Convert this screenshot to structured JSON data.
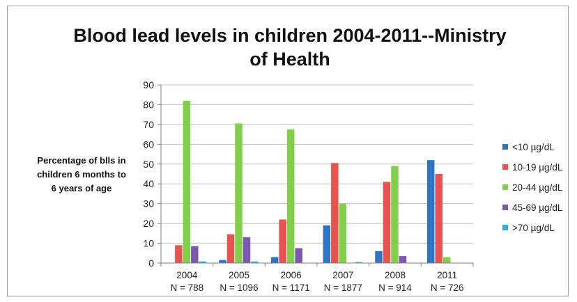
{
  "chart_data": {
    "type": "bar",
    "title_lines": [
      "Blood lead levels in children 2004-2011--Ministry",
      "of Health"
    ],
    "ylabel_lines": [
      "Percentage of blls in",
      "children 6 months to",
      "6 years of age"
    ],
    "categories": [
      {
        "year": "2004",
        "n": "N = 788"
      },
      {
        "year": "2005",
        "n": "N = 1096"
      },
      {
        "year": "2006",
        "n": "N = 1171"
      },
      {
        "year": "2007",
        "n": "N = 1877"
      },
      {
        "year": "2008",
        "n": "N = 914"
      },
      {
        "year": "2011",
        "n": "N = 726"
      }
    ],
    "ylim": [
      0,
      90
    ],
    "yticks": [
      0,
      10,
      20,
      30,
      40,
      50,
      60,
      70,
      80,
      90
    ],
    "grid": true,
    "legend_position": "right",
    "series": [
      {
        "name": "<10 µg/dL",
        "color": "#2e75c7",
        "values": [
          0,
          1.5,
          3,
          19,
          6,
          52
        ]
      },
      {
        "name": "10-19 µg/dL",
        "color": "#e8534d",
        "values": [
          9,
          14.5,
          22,
          50.5,
          41,
          45
        ]
      },
      {
        "name": "20-44 µg/dL",
        "color": "#82cf4c",
        "values": [
          82,
          70.5,
          67.5,
          30,
          49,
          3
        ]
      },
      {
        "name": "45-69 µg/dL",
        "color": "#7e58b0",
        "values": [
          8.5,
          13,
          7.5,
          0,
          3.5,
          0
        ]
      },
      {
        "name": ">70 µg/dL",
        "color": "#29b6d2",
        "values": [
          0.8,
          0.8,
          0,
          0.5,
          0,
          0
        ]
      }
    ]
  }
}
